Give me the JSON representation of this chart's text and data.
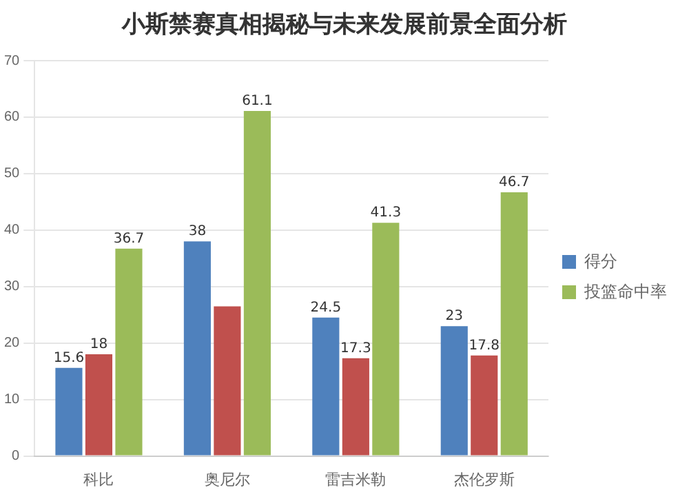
{
  "chart_data": {
    "type": "bar",
    "title": "小斯禁赛真相揭秘与未来发展前景全面分析",
    "categories": [
      "科比",
      "奥尼尔",
      "雷吉米勒",
      "杰伦罗斯"
    ],
    "series": [
      {
        "name": "得分",
        "color": "#4f81bd",
        "values": [
          15.6,
          38,
          24.5,
          23
        ],
        "value_labels": [
          "15.6",
          "38",
          "24.5",
          "23"
        ]
      },
      {
        "color": "#c0504d",
        "values": [
          18,
          26.5,
          17.3,
          17.8
        ],
        "value_labels": [
          "18",
          null,
          "17.3",
          "17.8"
        ]
      },
      {
        "name": "投篮命中率",
        "color": "#9bbb59",
        "values": [
          36.7,
          61.1,
          41.3,
          46.7
        ],
        "value_labels": [
          "36.7",
          "61.1",
          "41.3",
          "46.7"
        ]
      }
    ],
    "ylim": [
      0,
      70
    ],
    "yticks": [
      0,
      10,
      20,
      30,
      40,
      50,
      60,
      70
    ],
    "grid": "y",
    "legend": "right"
  }
}
